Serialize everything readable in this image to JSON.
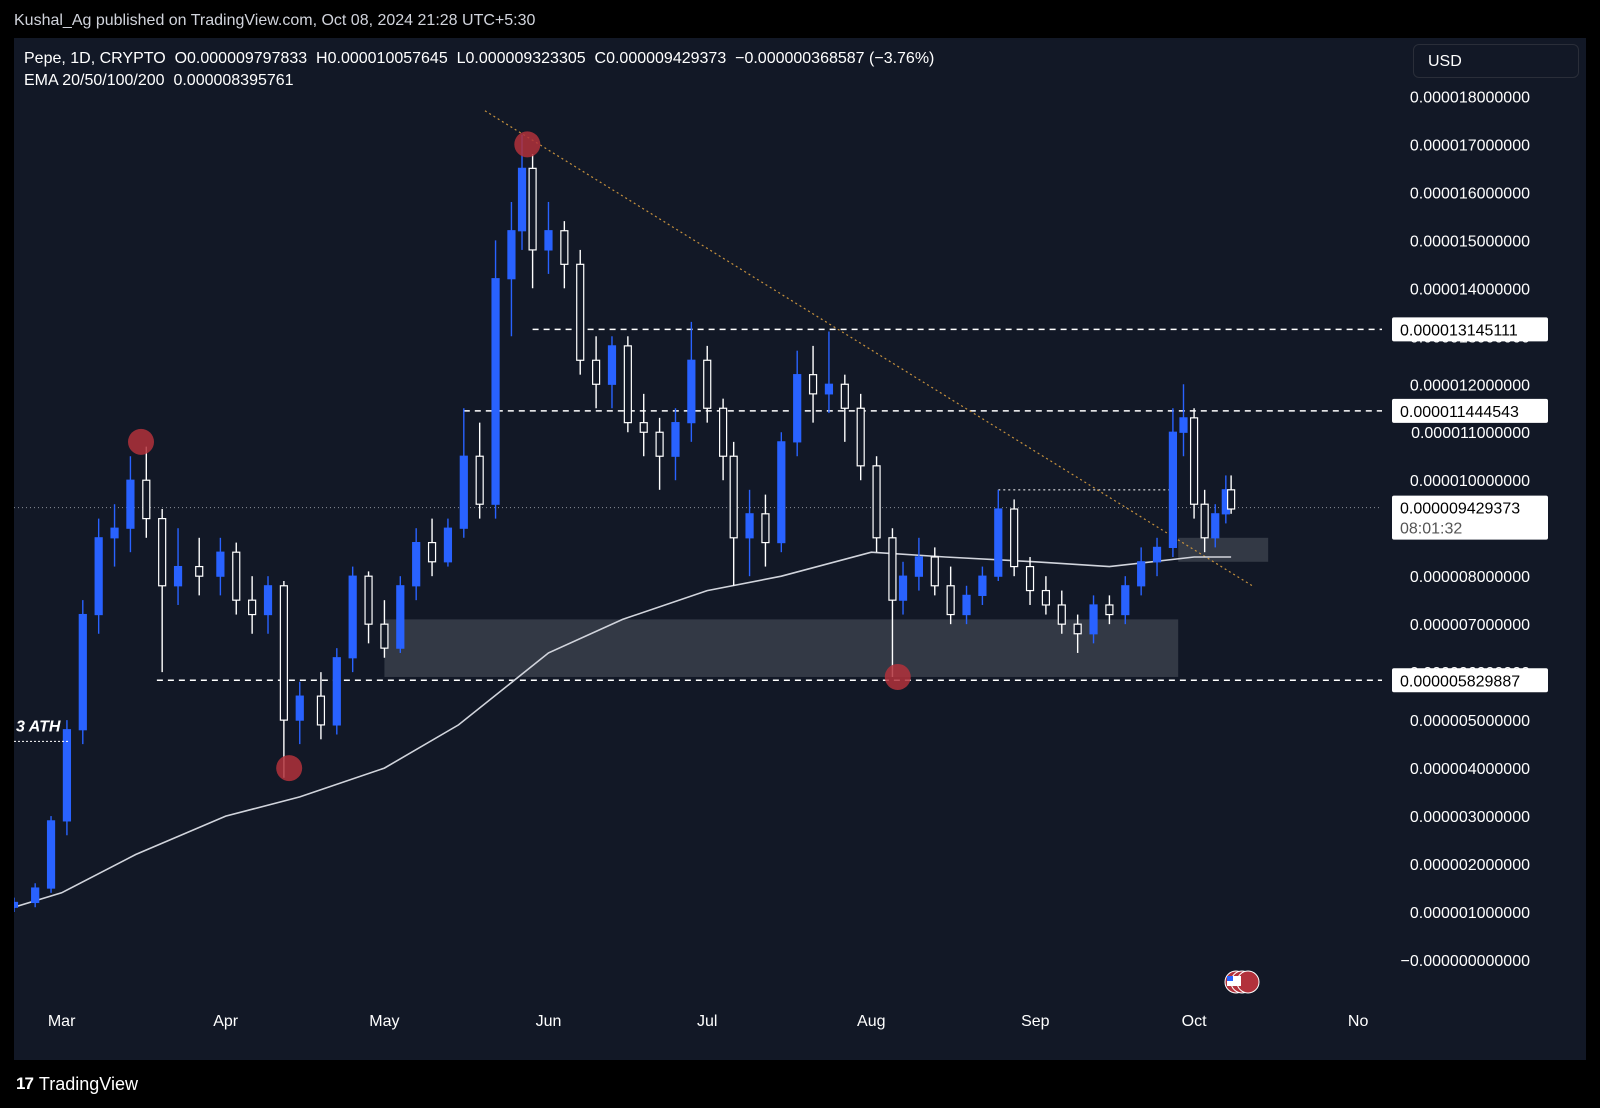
{
  "header": {
    "published_text": "Kushal_Ag published on TradingView.com, Oct 08, 2024 21:28 UTC+5:30"
  },
  "legend": {
    "line1": "Pepe, 1D, CRYPTO  O0.000009797833  H0.000010057645  L0.000009323305  C0.000009429373  −0.000000368587 (−3.76%)",
    "line2": "EMA 20/50/100/200  0.000008395761"
  },
  "currency_button": "USD",
  "footer": {
    "brand": "TradingView",
    "logo_icon": "tradingview-logo-icon"
  },
  "colors": {
    "background": "#121826",
    "bull_candle": "#2962ff",
    "bear_candle": "#ffffff",
    "ema": "#d1d4dc",
    "trendline": "#c7923e",
    "pivot_marker": "#b2313b",
    "zone": "#3a3f4b"
  },
  "chart_data": {
    "type": "candlestick",
    "symbol": "Pepe",
    "interval": "1D",
    "title": "",
    "x_ticks": [
      "Mar",
      "Apr",
      "May",
      "Jun",
      "Jul",
      "Aug",
      "Sep",
      "Oct",
      "No"
    ],
    "y_ticks": [
      "0.000018000000",
      "0.000017000000",
      "0.000016000000",
      "0.000015000000",
      "0.000014000000",
      "0.000013000000",
      "0.000012000000",
      "0.000011000000",
      "0.000010000000",
      "0.000009000000",
      "0.000008000000",
      "0.000007000000",
      "0.000006000000",
      "0.000005000000",
      "0.000004000000",
      "0.000003000000",
      "0.000002000000",
      "0.000001000000",
      "−0.000000000000"
    ],
    "y_tick_values": [
      1.8e-05,
      1.7e-05,
      1.6e-05,
      1.5e-05,
      1.4e-05,
      1.3e-05,
      1.2e-05,
      1.1e-05,
      1e-05,
      9e-06,
      8e-06,
      7e-06,
      6e-06,
      5e-06,
      4e-06,
      3e-06,
      2e-06,
      1e-06,
      0
    ],
    "ylim": [
      -1e-06,
      1.88e-05
    ],
    "x_range": [
      "2024-02-21",
      "2024-11-04"
    ],
    "ohlc": [
      {
        "date": "2024-02-21",
        "o": 1.1e-06,
        "h": 1.3e-06,
        "l": 1e-06,
        "c": 1.2e-06
      },
      {
        "date": "2024-02-25",
        "o": 1.2e-06,
        "h": 1.6e-06,
        "l": 1.1e-06,
        "c": 1.5e-06
      },
      {
        "date": "2024-02-28",
        "o": 1.5e-06,
        "h": 3e-06,
        "l": 1.4e-06,
        "c": 2.9e-06
      },
      {
        "date": "2024-03-02",
        "o": 2.9e-06,
        "h": 5e-06,
        "l": 2.6e-06,
        "c": 4.8e-06
      },
      {
        "date": "2024-03-05",
        "o": 4.8e-06,
        "h": 7.5e-06,
        "l": 4.5e-06,
        "c": 7.2e-06
      },
      {
        "date": "2024-03-08",
        "o": 7.2e-06,
        "h": 9.2e-06,
        "l": 6.8e-06,
        "c": 8.8e-06
      },
      {
        "date": "2024-03-11",
        "o": 8.8e-06,
        "h": 9.5e-06,
        "l": 8.2e-06,
        "c": 9e-06
      },
      {
        "date": "2024-03-14",
        "o": 9e-06,
        "h": 1.05e-05,
        "l": 8.5e-06,
        "c": 1e-05
      },
      {
        "date": "2024-03-17",
        "o": 1e-05,
        "h": 1.07e-05,
        "l": 8.8e-06,
        "c": 9.2e-06
      },
      {
        "date": "2024-03-20",
        "o": 9.2e-06,
        "h": 9.4e-06,
        "l": 6e-06,
        "c": 7.8e-06
      },
      {
        "date": "2024-03-23",
        "o": 7.8e-06,
        "h": 9e-06,
        "l": 7.4e-06,
        "c": 8.2e-06
      },
      {
        "date": "2024-03-27",
        "o": 8.2e-06,
        "h": 8.8e-06,
        "l": 7.6e-06,
        "c": 8e-06
      },
      {
        "date": "2024-03-31",
        "o": 8e-06,
        "h": 8.8e-06,
        "l": 7.6e-06,
        "c": 8.5e-06
      },
      {
        "date": "2024-04-03",
        "o": 8.5e-06,
        "h": 8.7e-06,
        "l": 7.2e-06,
        "c": 7.5e-06
      },
      {
        "date": "2024-04-06",
        "o": 7.5e-06,
        "h": 8e-06,
        "l": 6.8e-06,
        "c": 7.2e-06
      },
      {
        "date": "2024-04-09",
        "o": 7.2e-06,
        "h": 8e-06,
        "l": 6.8e-06,
        "c": 7.8e-06
      },
      {
        "date": "2024-04-12",
        "o": 7.8e-06,
        "h": 7.9e-06,
        "l": 3.8e-06,
        "c": 5e-06
      },
      {
        "date": "2024-04-15",
        "o": 5e-06,
        "h": 5.8e-06,
        "l": 4.5e-06,
        "c": 5.5e-06
      },
      {
        "date": "2024-04-19",
        "o": 5.5e-06,
        "h": 6e-06,
        "l": 4.6e-06,
        "c": 4.9e-06
      },
      {
        "date": "2024-04-22",
        "o": 4.9e-06,
        "h": 6.5e-06,
        "l": 4.7e-06,
        "c": 6.3e-06
      },
      {
        "date": "2024-04-25",
        "o": 6.3e-06,
        "h": 8.2e-06,
        "l": 6e-06,
        "c": 8e-06
      },
      {
        "date": "2024-04-28",
        "o": 8e-06,
        "h": 8.1e-06,
        "l": 6.6e-06,
        "c": 7e-06
      },
      {
        "date": "2024-05-01",
        "o": 7e-06,
        "h": 7.5e-06,
        "l": 6.3e-06,
        "c": 6.5e-06
      },
      {
        "date": "2024-05-04",
        "o": 6.5e-06,
        "h": 8e-06,
        "l": 6.4e-06,
        "c": 7.8e-06
      },
      {
        "date": "2024-05-07",
        "o": 7.8e-06,
        "h": 9e-06,
        "l": 7.5e-06,
        "c": 8.7e-06
      },
      {
        "date": "2024-05-10",
        "o": 8.7e-06,
        "h": 9.2e-06,
        "l": 8e-06,
        "c": 8.3e-06
      },
      {
        "date": "2024-05-13",
        "o": 8.3e-06,
        "h": 9.2e-06,
        "l": 8.2e-06,
        "c": 9e-06
      },
      {
        "date": "2024-05-16",
        "o": 9e-06,
        "h": 1.15e-05,
        "l": 8.8e-06,
        "c": 1.05e-05
      },
      {
        "date": "2024-05-19",
        "o": 1.05e-05,
        "h": 1.12e-05,
        "l": 9.2e-06,
        "c": 9.5e-06
      },
      {
        "date": "2024-05-22",
        "o": 9.5e-06,
        "h": 1.5e-05,
        "l": 9.2e-06,
        "c": 1.42e-05
      },
      {
        "date": "2024-05-25",
        "o": 1.42e-05,
        "h": 1.58e-05,
        "l": 1.3e-05,
        "c": 1.52e-05
      },
      {
        "date": "2024-05-27",
        "o": 1.52e-05,
        "h": 1.72e-05,
        "l": 1.48e-05,
        "c": 1.65e-05
      },
      {
        "date": "2024-05-29",
        "o": 1.65e-05,
        "h": 1.68e-05,
        "l": 1.4e-05,
        "c": 1.48e-05
      },
      {
        "date": "2024-06-01",
        "o": 1.48e-05,
        "h": 1.58e-05,
        "l": 1.43e-05,
        "c": 1.52e-05
      },
      {
        "date": "2024-06-04",
        "o": 1.52e-05,
        "h": 1.54e-05,
        "l": 1.4e-05,
        "c": 1.45e-05
      },
      {
        "date": "2024-06-07",
        "o": 1.45e-05,
        "h": 1.48e-05,
        "l": 1.22e-05,
        "c": 1.25e-05
      },
      {
        "date": "2024-06-10",
        "o": 1.25e-05,
        "h": 1.3e-05,
        "l": 1.15e-05,
        "c": 1.2e-05
      },
      {
        "date": "2024-06-13",
        "o": 1.2e-05,
        "h": 1.3e-05,
        "l": 1.15e-05,
        "c": 1.28e-05
      },
      {
        "date": "2024-06-16",
        "o": 1.28e-05,
        "h": 1.3e-05,
        "l": 1.1e-05,
        "c": 1.12e-05
      },
      {
        "date": "2024-06-19",
        "o": 1.12e-05,
        "h": 1.18e-05,
        "l": 1.05e-05,
        "c": 1.1e-05
      },
      {
        "date": "2024-06-22",
        "o": 1.1e-05,
        "h": 1.13e-05,
        "l": 9.8e-06,
        "c": 1.05e-05
      },
      {
        "date": "2024-06-25",
        "o": 1.05e-05,
        "h": 1.15e-05,
        "l": 1e-05,
        "c": 1.12e-05
      },
      {
        "date": "2024-06-28",
        "o": 1.12e-05,
        "h": 1.33e-05,
        "l": 1.08e-05,
        "c": 1.25e-05
      },
      {
        "date": "2024-07-01",
        "o": 1.25e-05,
        "h": 1.28e-05,
        "l": 1.12e-05,
        "c": 1.15e-05
      },
      {
        "date": "2024-07-04",
        "o": 1.15e-05,
        "h": 1.17e-05,
        "l": 1e-05,
        "c": 1.05e-05
      },
      {
        "date": "2024-07-06",
        "o": 1.05e-05,
        "h": 1.08e-05,
        "l": 7.8e-06,
        "c": 8.8e-06
      },
      {
        "date": "2024-07-09",
        "o": 8.8e-06,
        "h": 9.8e-06,
        "l": 8e-06,
        "c": 9.3e-06
      },
      {
        "date": "2024-07-12",
        "o": 9.3e-06,
        "h": 9.7e-06,
        "l": 8.2e-06,
        "c": 8.7e-06
      },
      {
        "date": "2024-07-15",
        "o": 8.7e-06,
        "h": 1.1e-05,
        "l": 8.5e-06,
        "c": 1.08e-05
      },
      {
        "date": "2024-07-18",
        "o": 1.08e-05,
        "h": 1.27e-05,
        "l": 1.05e-05,
        "c": 1.22e-05
      },
      {
        "date": "2024-07-21",
        "o": 1.22e-05,
        "h": 1.28e-05,
        "l": 1.12e-05,
        "c": 1.18e-05
      },
      {
        "date": "2024-07-24",
        "o": 1.18e-05,
        "h": 1.31e-05,
        "l": 1.14e-05,
        "c": 1.2e-05
      },
      {
        "date": "2024-07-27",
        "o": 1.2e-05,
        "h": 1.22e-05,
        "l": 1.08e-05,
        "c": 1.15e-05
      },
      {
        "date": "2024-07-30",
        "o": 1.15e-05,
        "h": 1.18e-05,
        "l": 1e-05,
        "c": 1.03e-05
      },
      {
        "date": "2024-08-02",
        "o": 1.03e-05,
        "h": 1.05e-05,
        "l": 8.5e-06,
        "c": 8.8e-06
      },
      {
        "date": "2024-08-05",
        "o": 8.8e-06,
        "h": 9e-06,
        "l": 5.9e-06,
        "c": 7.5e-06
      },
      {
        "date": "2024-08-07",
        "o": 7.5e-06,
        "h": 8.3e-06,
        "l": 7.2e-06,
        "c": 8e-06
      },
      {
        "date": "2024-08-10",
        "o": 8e-06,
        "h": 8.8e-06,
        "l": 7.7e-06,
        "c": 8.4e-06
      },
      {
        "date": "2024-08-13",
        "o": 8.4e-06,
        "h": 8.6e-06,
        "l": 7.6e-06,
        "c": 7.8e-06
      },
      {
        "date": "2024-08-16",
        "o": 7.8e-06,
        "h": 8.2e-06,
        "l": 7e-06,
        "c": 7.2e-06
      },
      {
        "date": "2024-08-19",
        "o": 7.2e-06,
        "h": 7.8e-06,
        "l": 7e-06,
        "c": 7.6e-06
      },
      {
        "date": "2024-08-22",
        "o": 7.6e-06,
        "h": 8.2e-06,
        "l": 7.4e-06,
        "c": 8e-06
      },
      {
        "date": "2024-08-25",
        "o": 8e-06,
        "h": 9.8e-06,
        "l": 7.9e-06,
        "c": 9.4e-06
      },
      {
        "date": "2024-08-28",
        "o": 9.4e-06,
        "h": 9.6e-06,
        "l": 8e-06,
        "c": 8.2e-06
      },
      {
        "date": "2024-08-31",
        "o": 8.2e-06,
        "h": 8.4e-06,
        "l": 7.4e-06,
        "c": 7.7e-06
      },
      {
        "date": "2024-09-03",
        "o": 7.7e-06,
        "h": 8e-06,
        "l": 7.2e-06,
        "c": 7.4e-06
      },
      {
        "date": "2024-09-06",
        "o": 7.4e-06,
        "h": 7.7e-06,
        "l": 6.8e-06,
        "c": 7e-06
      },
      {
        "date": "2024-09-09",
        "o": 7e-06,
        "h": 7.2e-06,
        "l": 6.4e-06,
        "c": 6.8e-06
      },
      {
        "date": "2024-09-12",
        "o": 6.8e-06,
        "h": 7.6e-06,
        "l": 6.6e-06,
        "c": 7.4e-06
      },
      {
        "date": "2024-09-15",
        "o": 7.4e-06,
        "h": 7.6e-06,
        "l": 7e-06,
        "c": 7.2e-06
      },
      {
        "date": "2024-09-18",
        "o": 7.2e-06,
        "h": 8e-06,
        "l": 7e-06,
        "c": 7.8e-06
      },
      {
        "date": "2024-09-21",
        "o": 7.8e-06,
        "h": 8.6e-06,
        "l": 7.6e-06,
        "c": 8.3e-06
      },
      {
        "date": "2024-09-24",
        "o": 8.3e-06,
        "h": 8.8e-06,
        "l": 8e-06,
        "c": 8.6e-06
      },
      {
        "date": "2024-09-27",
        "o": 8.6e-06,
        "h": 1.15e-05,
        "l": 8.4e-06,
        "c": 1.1e-05
      },
      {
        "date": "2024-09-29",
        "o": 1.1e-05,
        "h": 1.2e-05,
        "l": 1.05e-05,
        "c": 1.13e-05
      },
      {
        "date": "2024-10-01",
        "o": 1.13e-05,
        "h": 1.15e-05,
        "l": 9.2e-06,
        "c": 9.5e-06
      },
      {
        "date": "2024-10-03",
        "o": 9.5e-06,
        "h": 9.8e-06,
        "l": 8.5e-06,
        "c": 8.8e-06
      },
      {
        "date": "2024-10-05",
        "o": 8.8e-06,
        "h": 9.5e-06,
        "l": 8.6e-06,
        "c": 9.3e-06
      },
      {
        "date": "2024-10-07",
        "o": 9.3e-06,
        "h": 1.01e-05,
        "l": 9.1e-06,
        "c": 9.8e-06
      },
      {
        "date": "2024-10-08",
        "o": 9.8e-06,
        "h": 1.01e-05,
        "l": 9.3e-06,
        "c": 9.4e-06
      }
    ],
    "ema_series": [
      {
        "date": "2024-02-21",
        "v": 1.1e-06
      },
      {
        "date": "2024-03-01",
        "v": 1.4e-06
      },
      {
        "date": "2024-03-15",
        "v": 2.2e-06
      },
      {
        "date": "2024-04-01",
        "v": 3e-06
      },
      {
        "date": "2024-04-15",
        "v": 3.4e-06
      },
      {
        "date": "2024-05-01",
        "v": 4e-06
      },
      {
        "date": "2024-05-15",
        "v": 4.9e-06
      },
      {
        "date": "2024-06-01",
        "v": 6.4e-06
      },
      {
        "date": "2024-06-15",
        "v": 7.1e-06
      },
      {
        "date": "2024-07-01",
        "v": 7.7e-06
      },
      {
        "date": "2024-07-15",
        "v": 8e-06
      },
      {
        "date": "2024-08-01",
        "v": 8.5e-06
      },
      {
        "date": "2024-08-15",
        "v": 8.4e-06
      },
      {
        "date": "2024-09-01",
        "v": 8.3e-06
      },
      {
        "date": "2024-09-15",
        "v": 8.2e-06
      },
      {
        "date": "2024-10-01",
        "v": 8.4e-06
      },
      {
        "date": "2024-10-08",
        "v": 8.4e-06
      }
    ],
    "horizontal_levels": [
      {
        "value": 1.3145111e-05,
        "label": "0.000013145111",
        "from": "2024-05-29"
      },
      {
        "value": 1.1444543e-05,
        "label": "0.000011444543",
        "from": "2024-05-16"
      },
      {
        "value": 5.829887e-06,
        "label": "0.000005829887",
        "from": "2024-03-19"
      }
    ],
    "last_price": {
      "value": 9.429373e-06,
      "label": "0.000009429373",
      "countdown": "08:01:32"
    },
    "short_level": {
      "value": 9.8e-06,
      "from": "2024-08-25",
      "to": "2024-09-27"
    },
    "trendline": {
      "from": {
        "date": "2024-05-20",
        "v": 1.77e-05
      },
      "to": {
        "date": "2024-10-12",
        "v": 7.8e-06
      }
    },
    "zones": [
      {
        "from": "2024-05-01",
        "to": "2024-09-28",
        "top": 7.1e-06,
        "bottom": 5.9e-06
      },
      {
        "from": "2024-09-28",
        "to": "2024-10-15",
        "top": 8.8e-06,
        "bottom": 8.3e-06
      }
    ],
    "pivot_markers": [
      {
        "date": "2024-03-16",
        "v": 1.08e-05
      },
      {
        "date": "2024-04-13",
        "v": 4e-06
      },
      {
        "date": "2024-05-28",
        "v": 1.7e-05
      },
      {
        "date": "2024-08-06",
        "v": 5.9e-06
      }
    ],
    "annotation": {
      "text": "3 ATH",
      "value": 4.6e-06
    },
    "grid": false,
    "event_icon": "us-flag-icon"
  }
}
